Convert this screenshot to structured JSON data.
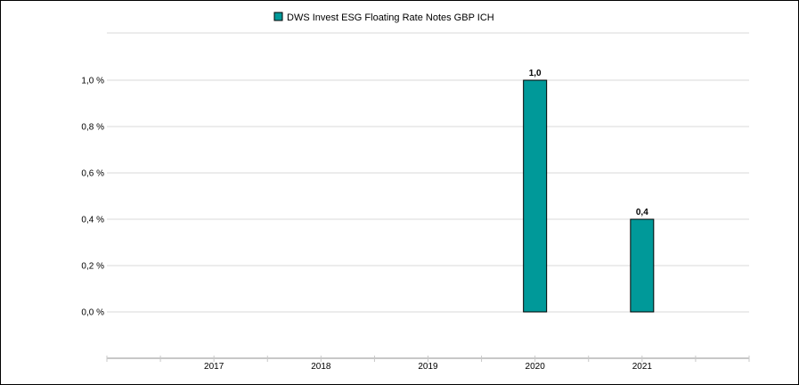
{
  "chart_data": {
    "type": "bar",
    "title": "",
    "xlabel": "",
    "ylabel": "",
    "categories": [
      "2017",
      "2018",
      "2019",
      "2020",
      "2021"
    ],
    "series": [
      {
        "name": "DWS Invest ESG Floating Rate Notes  GBP ICH",
        "values": [
          null,
          null,
          null,
          1.0,
          0.4
        ],
        "data_labels": [
          "",
          "",
          "",
          "1,0",
          "0,4"
        ]
      }
    ],
    "y_ticks": [
      0.0,
      0.2,
      0.4,
      0.6,
      0.8,
      1.0
    ],
    "y_tick_labels": [
      "0,0 %",
      "0,2 %",
      "0,4 %",
      "0,6 %",
      "0,8 %",
      "1,0 %"
    ],
    "ylim": [
      0,
      1.0
    ],
    "grid": true,
    "legend_position": "top-center",
    "colors": {
      "bar": "#009999",
      "bar_stroke": "#000000",
      "grid": "#d9d9d9",
      "axis": "#c8c8c8"
    }
  }
}
